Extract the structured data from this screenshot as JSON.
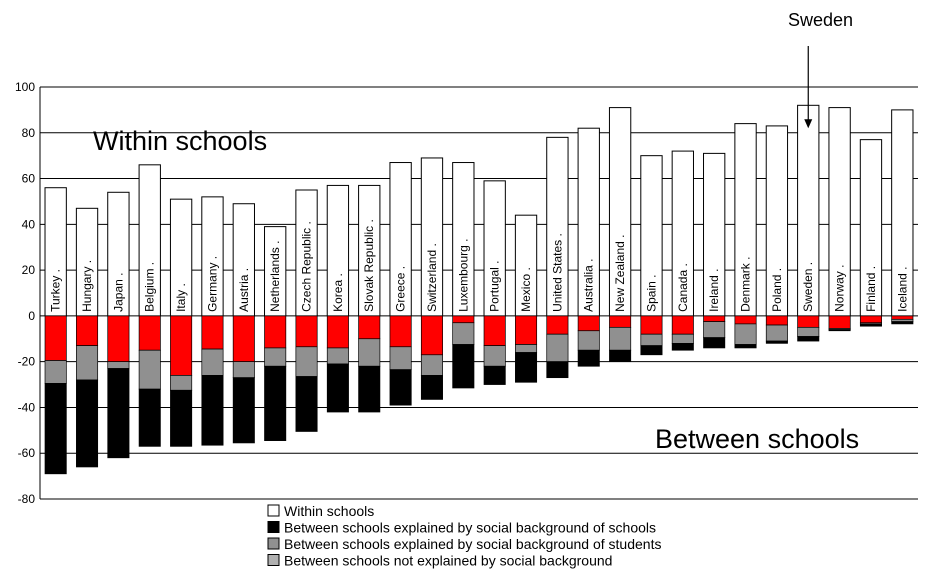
{
  "chart_data": {
    "type": "bar",
    "stacked": true,
    "ylim": [
      -80,
      100
    ],
    "yticks": [
      -80,
      -60,
      -40,
      -20,
      0,
      20,
      40,
      60,
      80,
      100
    ],
    "grid": true,
    "categories": [
      "Turkey .",
      "Hungary .",
      "Japan .",
      "Belgium .",
      "Italy .",
      "Germany .",
      "Austria .",
      "Netherlands .",
      "Czech Republic .",
      "Korea .",
      "Slovak Republic .",
      "Greece .",
      "Switzerland .",
      "Luxembourg .",
      "Portugal .",
      "Mexico .",
      "United States .",
      "Australia .",
      "New Zealand .",
      "Spain .",
      "Canada .",
      "Ireland .",
      "Denmark .",
      "Poland .",
      "Sweden .",
      "Norway .",
      "Finland .",
      "Iceland ."
    ],
    "series": [
      {
        "name": "Within schools",
        "color": "#ffffff",
        "values": [
          56,
          47,
          54,
          66,
          51,
          52,
          49,
          39,
          55,
          57,
          57,
          67,
          69,
          67,
          59,
          44,
          78,
          82,
          91,
          70,
          72,
          71,
          84,
          83,
          92,
          91,
          77,
          90
        ]
      },
      {
        "name": "",
        "color": "#ff0000",
        "values": [
          -19.5,
          -13,
          -20,
          -15,
          -26,
          -14.5,
          -20,
          -14,
          -13.5,
          -14,
          -10,
          -13.5,
          -17,
          -3,
          -13,
          -12.5,
          -8,
          -6.5,
          -5,
          -8,
          -8,
          -2.5,
          -3.5,
          -4,
          -5,
          -5.5,
          -3,
          -1.5
        ]
      },
      {
        "name": "Between schools explained by social background of students",
        "color": "#909090",
        "values": [
          -10,
          -15,
          -3,
          -17,
          -6.5,
          -11.5,
          -7,
          -8,
          -13,
          -7,
          -12,
          -10,
          -9,
          -9.5,
          -9,
          -3.5,
          -12,
          -8.5,
          -10,
          -5,
          -4,
          -7,
          -9,
          -7,
          -4,
          -0.5,
          -0.5,
          -1
        ]
      },
      {
        "name": "Between schools explained by social background of schools",
        "color": "#000000",
        "values": [
          -39.5,
          -38,
          -39,
          -25,
          -24.5,
          -30.5,
          -28.5,
          -32.5,
          -24,
          -21,
          -20,
          -15.5,
          -10.5,
          -19,
          -8,
          -13,
          -7,
          -7,
          -5,
          -4,
          -3,
          -4.5,
          -1.5,
          -1,
          -2,
          -0.5,
          -1,
          -1
        ]
      }
    ],
    "annotations": [
      {
        "text": "Within schools"
      },
      {
        "text": "Between schools"
      },
      {
        "text": "Sweden",
        "target": "Sweden ."
      }
    ],
    "legend": {
      "placement": "bottom",
      "entries": [
        {
          "label": "Within schools",
          "color": "#ffffff"
        },
        {
          "label": "Between schools explained by social background of schools",
          "color": "#000000"
        },
        {
          "label": "Between schools explained by social background of students",
          "color": "#909090"
        },
        {
          "label": "Between schools not explained by social background",
          "color": "#b0b0b0"
        }
      ]
    }
  }
}
